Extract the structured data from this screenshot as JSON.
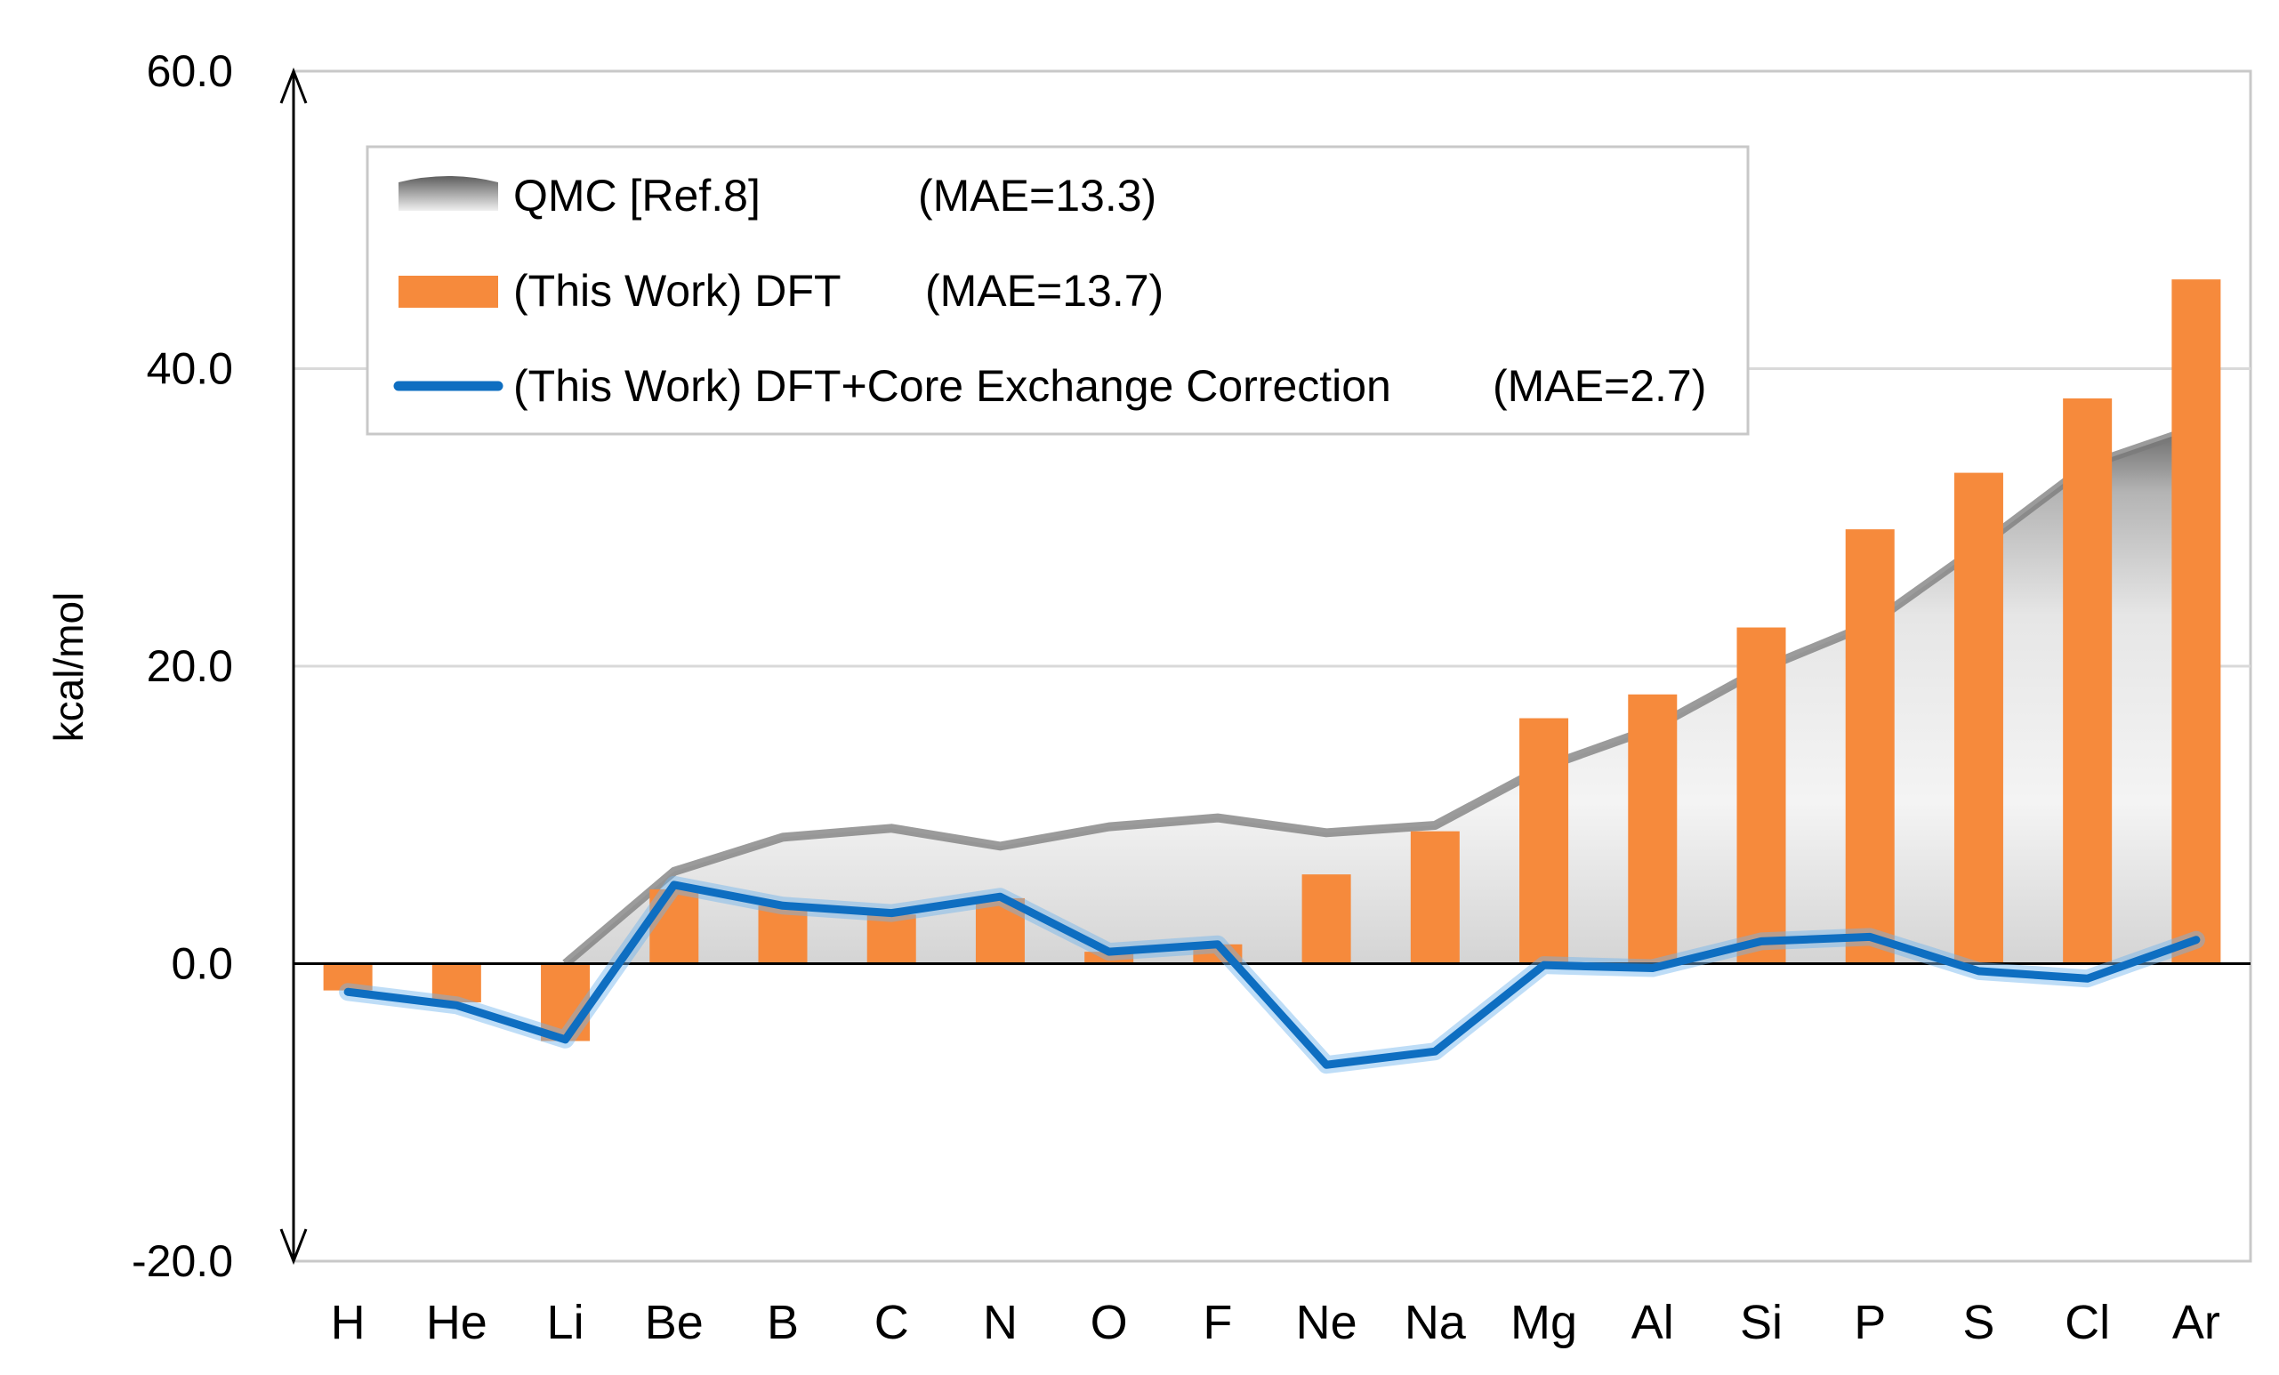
{
  "chart_data": {
    "type": "bar",
    "title": "",
    "xlabel": "",
    "ylabel": "kcal/mol",
    "ylim": [
      -20,
      60
    ],
    "yticks": [
      60,
      40,
      20,
      0,
      -20
    ],
    "ytick_labels": [
      "60.0",
      "40.0",
      "20.0",
      "0.0",
      "-20.0"
    ],
    "grid": true,
    "legend_position": "top-left",
    "categories": [
      "H",
      "He",
      "Li",
      "Be",
      "B",
      "C",
      "N",
      "O",
      "F",
      "Ne",
      "Na",
      "Mg",
      "Al",
      "Si",
      "P",
      "S",
      "Cl",
      "Ar"
    ],
    "series": [
      {
        "name": "QMC [Ref.8]",
        "mae_label": "(MAE=13.3)",
        "kind": "area",
        "color": "#808080",
        "values": [
          null,
          null,
          0.0,
          6.2,
          8.5,
          9.1,
          7.9,
          9.2,
          9.8,
          8.8,
          9.3,
          13.2,
          15.8,
          19.8,
          22.8,
          28.0,
          33.5,
          36.0
        ]
      },
      {
        "name": "(This Work) DFT",
        "mae_label": "(MAE=13.7)",
        "kind": "bar",
        "color": "#F68A3C",
        "values": [
          -1.8,
          -2.6,
          -5.2,
          5.0,
          3.9,
          3.3,
          4.4,
          0.8,
          1.3,
          6.0,
          8.9,
          16.5,
          18.1,
          22.6,
          29.2,
          33.0,
          38.0,
          46.0
        ]
      },
      {
        "name": "(This Work) DFT+Core Exchange Correction",
        "mae_label": "(MAE=2.7)",
        "kind": "line",
        "color": "#0E6EC1",
        "values": [
          -1.9,
          -2.8,
          -5.1,
          5.3,
          3.9,
          3.4,
          4.5,
          0.8,
          1.3,
          -6.8,
          -5.9,
          -0.1,
          -0.3,
          1.5,
          1.8,
          -0.5,
          -1.0,
          1.6
        ]
      }
    ]
  }
}
